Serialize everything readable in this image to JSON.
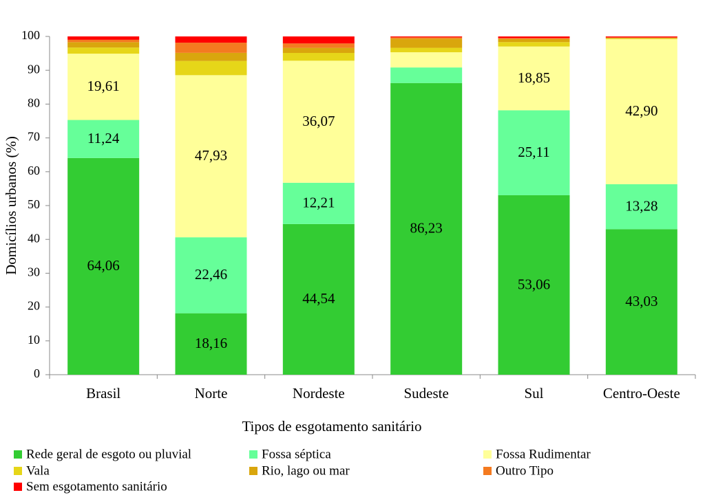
{
  "chart_data": {
    "type": "stacked_bar",
    "x_label": "Tipos de esgotamento sanitário",
    "y_label": "Domicílios urbanos (%)",
    "categories": [
      "Brasil",
      "Norte",
      "Nordeste",
      "Sudeste",
      "Sul",
      "Centro-Oeste"
    ],
    "ylim": [
      0,
      100
    ],
    "yticks": [
      0,
      10,
      20,
      30,
      40,
      50,
      60,
      70,
      80,
      90,
      100
    ],
    "legend": "bottom",
    "series": [
      {
        "name": "Rede geral de esgoto ou pluvial",
        "color": "#33cc33",
        "values": [
          64.06,
          18.16,
          44.54,
          86.23,
          53.06,
          43.03
        ],
        "value_labels": [
          "64,06",
          "18,16",
          "44,54",
          "86,23",
          "53,06",
          "43,03"
        ]
      },
      {
        "name": "Fossa séptica",
        "color": "#66ff99",
        "values": [
          11.24,
          22.46,
          12.21,
          4.6,
          25.11,
          13.28
        ],
        "value_labels": [
          "11,24",
          "22,46",
          "12,21",
          null,
          "25,11",
          "13,28"
        ]
      },
      {
        "name": "Fossa Rudimentar",
        "color": "#ffff99",
        "values": [
          19.61,
          47.93,
          36.07,
          4.5,
          18.85,
          42.9
        ],
        "value_labels": [
          "19,61",
          "47,93",
          "36,07",
          null,
          "18,85",
          "42,90"
        ]
      },
      {
        "name": "Vala",
        "color": "#e6d619",
        "values": [
          1.8,
          4.2,
          2.3,
          1.3,
          1.3,
          0.2
        ]
      },
      {
        "name": "Rio, lago ou mar",
        "color": "#d9a60d",
        "values": [
          1.6,
          2.4,
          1.5,
          2.7,
          0.9,
          0.15
        ]
      },
      {
        "name": "Outro Tipo",
        "color": "#f47a20",
        "values": [
          0.7,
          3.0,
          1.3,
          0.4,
          0.3,
          0.15
        ]
      },
      {
        "name": "Sem esgotamento sanitário",
        "color": "#ff0000",
        "values": [
          1.0,
          1.85,
          2.08,
          0.27,
          0.48,
          0.29
        ]
      }
    ]
  }
}
